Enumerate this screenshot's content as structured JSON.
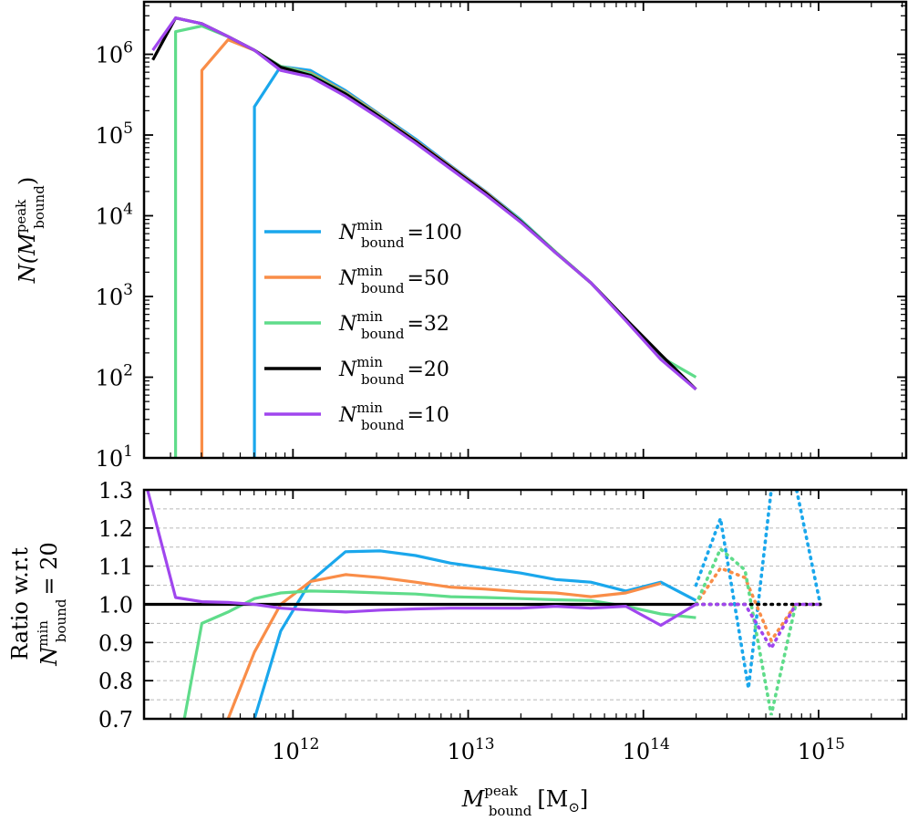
{
  "chart_data": [
    {
      "id": "top",
      "type": "line",
      "xscale": "log",
      "yscale": "log",
      "xlim_log10": [
        11.15,
        15.5
      ],
      "ylim_log10": [
        1,
        6.65
      ],
      "ylabel": "N(M_bound^peak)",
      "yticks_log10": [
        1,
        2,
        3,
        4,
        5,
        6
      ],
      "ytick_base": "10",
      "ytick_exps": [
        "1",
        "2",
        "3",
        "4",
        "5",
        "6"
      ],
      "legend_position": "center-left",
      "series": [
        {
          "name": "N_bound^min = 100",
          "legend_value": "100",
          "color": "#1aa7ec",
          "x": [
            11.78,
            11.78,
            11.93,
            12.1,
            12.3,
            12.5,
            12.7,
            12.9,
            13.1,
            13.3,
            13.5,
            13.7,
            13.9,
            14.1,
            14.3
          ],
          "y": [
            1.0,
            5.35,
            5.85,
            5.8,
            5.55,
            5.25,
            4.95,
            4.62,
            4.3,
            3.95,
            3.55,
            3.17,
            2.72,
            2.25,
            1.85
          ]
        },
        {
          "name": "N_bound^min = 50",
          "legend_value": "50",
          "color": "#f98d48",
          "x": [
            11.48,
            11.48,
            11.63,
            11.78,
            11.93,
            12.1,
            12.3,
            12.5,
            12.7,
            12.9,
            13.1,
            13.3,
            13.5,
            13.7,
            13.9,
            14.1,
            14.3
          ],
          "y": [
            1.0,
            5.8,
            6.18,
            6.05,
            5.85,
            5.77,
            5.53,
            5.24,
            4.93,
            4.61,
            4.29,
            3.94,
            3.55,
            3.17,
            2.72,
            2.25,
            1.85
          ]
        },
        {
          "name": "N_bound^min = 32",
          "legend_value": "32",
          "color": "#5fdc8a",
          "x": [
            11.33,
            11.33,
            11.48,
            11.63,
            11.78,
            11.93,
            12.1,
            12.3,
            12.5,
            12.7,
            12.9,
            13.1,
            13.3,
            13.5,
            13.7,
            13.9,
            14.1,
            14.3
          ],
          "y": [
            1.0,
            6.28,
            6.35,
            6.22,
            6.05,
            5.85,
            5.76,
            5.52,
            5.23,
            4.92,
            4.6,
            4.28,
            3.94,
            3.55,
            3.17,
            2.72,
            2.25,
            2.0
          ]
        },
        {
          "name": "N_bound^min = 20",
          "legend_value": "20",
          "color": "#000000",
          "x": [
            11.2,
            11.33,
            11.48,
            11.63,
            11.78,
            11.93,
            12.1,
            12.3,
            12.5,
            12.7,
            12.9,
            13.1,
            13.3,
            13.5,
            13.7,
            13.9,
            14.1,
            14.3
          ],
          "y": [
            5.93,
            6.45,
            6.38,
            6.22,
            6.05,
            5.84,
            5.74,
            5.51,
            5.22,
            4.92,
            4.6,
            4.28,
            3.93,
            3.54,
            3.17,
            2.72,
            2.28,
            1.85
          ]
        },
        {
          "name": "N_bound^min = 10",
          "legend_value": "10",
          "color": "#a046ee",
          "x": [
            11.2,
            11.33,
            11.48,
            11.63,
            11.78,
            11.93,
            12.1,
            12.3,
            12.5,
            12.7,
            12.9,
            13.1,
            13.3,
            13.5,
            13.7,
            13.9,
            14.1,
            14.3
          ],
          "y": [
            6.05,
            6.45,
            6.38,
            6.22,
            6.05,
            5.8,
            5.72,
            5.48,
            5.2,
            4.9,
            4.58,
            4.26,
            3.92,
            3.54,
            3.17,
            2.7,
            2.22,
            1.85
          ]
        }
      ]
    },
    {
      "id": "bottom",
      "type": "line",
      "xscale": "log",
      "xlim_log10": [
        11.15,
        15.5
      ],
      "ylim": [
        0.7,
        1.3
      ],
      "xlabel": "M_bound^peak [M_sun]",
      "ylabel_line1": "Ratio w.r.t",
      "ylabel_line2": "N_bound^min = 20",
      "yticks": [
        0.7,
        0.8,
        0.9,
        1.0,
        1.1,
        1.2,
        1.3
      ],
      "ytick_labels": [
        "0.7",
        "0.8",
        "0.9",
        "1.0",
        "1.1",
        "1.2",
        "1.3"
      ],
      "gridlines_y": [
        0.75,
        0.8,
        0.85,
        0.9,
        0.95,
        1.05,
        1.1,
        1.15,
        1.2,
        1.25
      ],
      "xticks_log10": [
        12,
        13,
        14,
        15
      ],
      "xtick_base": "10",
      "xtick_exps": [
        "12",
        "13",
        "14",
        "15"
      ],
      "series": [
        {
          "name": "N_bound^min = 100",
          "color": "#1aa7ec",
          "solid": {
            "x": [
              11.78,
              11.93,
              12.1,
              12.3,
              12.5,
              12.7,
              12.9,
              13.1,
              13.3,
              13.5,
              13.7,
              13.9,
              14.1,
              14.3
            ],
            "y": [
              0.7,
              0.93,
              1.06,
              1.138,
              1.14,
              1.128,
              1.108,
              1.095,
              1.082,
              1.065,
              1.058,
              1.035,
              1.058,
              1.01
            ]
          },
          "dotted": {
            "x": [
              14.3,
              14.44,
              14.6,
              14.73,
              14.87,
              15.01
            ],
            "y": [
              1.05,
              1.225,
              0.78,
              1.3,
              1.31,
              1.0
            ]
          }
        },
        {
          "name": "N_bound^min = 50",
          "color": "#f98d48",
          "solid": {
            "x": [
              11.63,
              11.78,
              11.93,
              12.1,
              12.3,
              12.5,
              12.7,
              12.9,
              13.1,
              13.3,
              13.5,
              13.7,
              13.9,
              14.1
            ],
            "y": [
              0.7,
              0.875,
              1.0,
              1.06,
              1.078,
              1.07,
              1.058,
              1.045,
              1.04,
              1.033,
              1.03,
              1.02,
              1.03,
              1.055
            ]
          },
          "dotted": {
            "x": [
              14.3,
              14.44,
              14.58,
              14.73,
              14.87,
              15.01
            ],
            "y": [
              1.0,
              1.095,
              1.07,
              0.905,
              1.0,
              1.0
            ]
          }
        },
        {
          "name": "N_bound^min = 32",
          "color": "#5fdc8a",
          "solid": {
            "x": [
              11.38,
              11.48,
              11.63,
              11.78,
              11.93,
              12.1,
              12.3,
              12.5,
              12.7,
              12.9,
              13.1,
              13.3,
              13.5,
              13.7,
              13.9,
              14.1,
              14.3
            ],
            "y": [
              0.7,
              0.95,
              0.98,
              1.015,
              1.03,
              1.035,
              1.033,
              1.03,
              1.027,
              1.02,
              1.018,
              1.015,
              1.012,
              1.01,
              0.995,
              0.975,
              0.965
            ]
          },
          "dotted": {
            "x": [
              14.3,
              14.44,
              14.58,
              14.73,
              14.87
            ],
            "y": [
              1.0,
              1.145,
              1.09,
              0.71,
              1.0
            ]
          }
        },
        {
          "name": "N_bound^min = 20",
          "color": "#000000",
          "solid": {
            "x": [
              11.15,
              14.3
            ],
            "y": [
              1.0,
              1.0
            ]
          },
          "dotted": {
            "x": [
              14.3,
              15.01
            ],
            "y": [
              1.0,
              1.0
            ]
          }
        },
        {
          "name": "N_bound^min = 10",
          "color": "#a046ee",
          "solid": {
            "x": [
              11.17,
              11.33,
              11.48,
              11.63,
              11.78,
              11.93,
              12.1,
              12.3,
              12.5,
              12.7,
              12.9,
              13.1,
              13.3,
              13.5,
              13.7,
              13.9,
              14.1,
              14.3
            ],
            "y": [
              1.3,
              1.018,
              1.007,
              1.005,
              1.0,
              0.99,
              0.985,
              0.98,
              0.985,
              0.988,
              0.99,
              0.99,
              0.99,
              0.995,
              0.99,
              0.995,
              0.945,
              1.0
            ]
          },
          "dotted": {
            "x": [
              14.3,
              14.44,
              14.58,
              14.73,
              14.87,
              15.01
            ],
            "y": [
              1.0,
              1.0,
              1.0,
              0.885,
              1.0,
              1.0
            ]
          }
        }
      ]
    }
  ],
  "labels": {
    "top_ylabel_N": "N(",
    "top_ylabel_M": "M",
    "top_ylabel_sup": "peak",
    "top_ylabel_sub": "bound",
    "top_ylabel_close": ")",
    "legend_N": "N",
    "legend_sup": "min",
    "legend_sub": "bound",
    "legend_eq": "=",
    "bottom_ylabel_line1": "Ratio w.r.t",
    "bottom_ylabel_N": "N",
    "bottom_ylabel_sup": "min",
    "bottom_ylabel_sub": "bound",
    "bottom_ylabel_eq": "= 20",
    "xlabel_M": "M",
    "xlabel_sup": "peak",
    "xlabel_sub": "bound",
    "xlabel_unit": "[M",
    "xlabel_unit_sub": "⊙",
    "xlabel_close": "]"
  }
}
